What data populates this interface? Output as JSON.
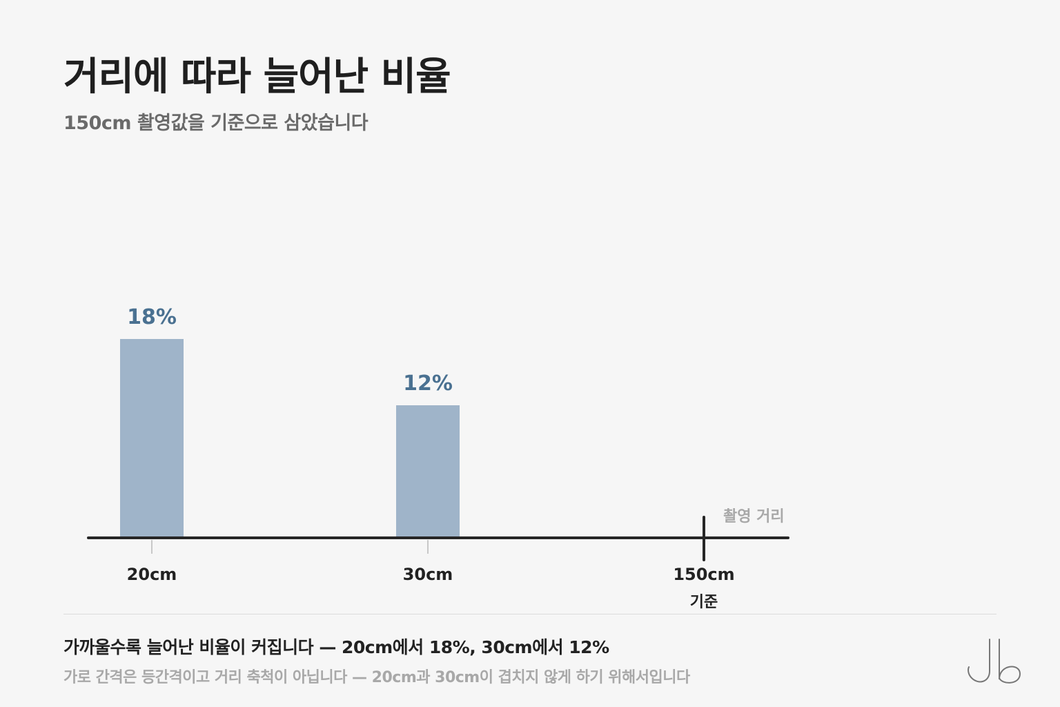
{
  "header": {
    "title": "거리에 따라 늘어난 비율",
    "subtitle": "150cm 촬영값을 기준으로 삼았습니다"
  },
  "chart_data": {
    "type": "bar",
    "categories": [
      "20cm",
      "30cm",
      "150cm"
    ],
    "values": [
      18,
      12,
      0
    ],
    "data_labels": [
      "18%",
      "12%",
      ""
    ],
    "baseline_category": "150cm",
    "baseline_label": "기준",
    "axis_label": "촬영 거리",
    "unit": "%",
    "grid": false,
    "colors": {
      "bar": "#9fb4c9",
      "label": "#4a7191",
      "axis": "#262626"
    }
  },
  "footer": {
    "caption": "가까울수록 늘어난 비율이 커집니다 — 20cm에서 18%, 30cm에서 12%",
    "note": "가로 간격은 등간격이고 거리 축척이 아닙니다 — 20cm과 30cm이 겹치지 않게 하기 위해서입니다"
  },
  "logo": {
    "icon": "jb-monogram-icon"
  }
}
